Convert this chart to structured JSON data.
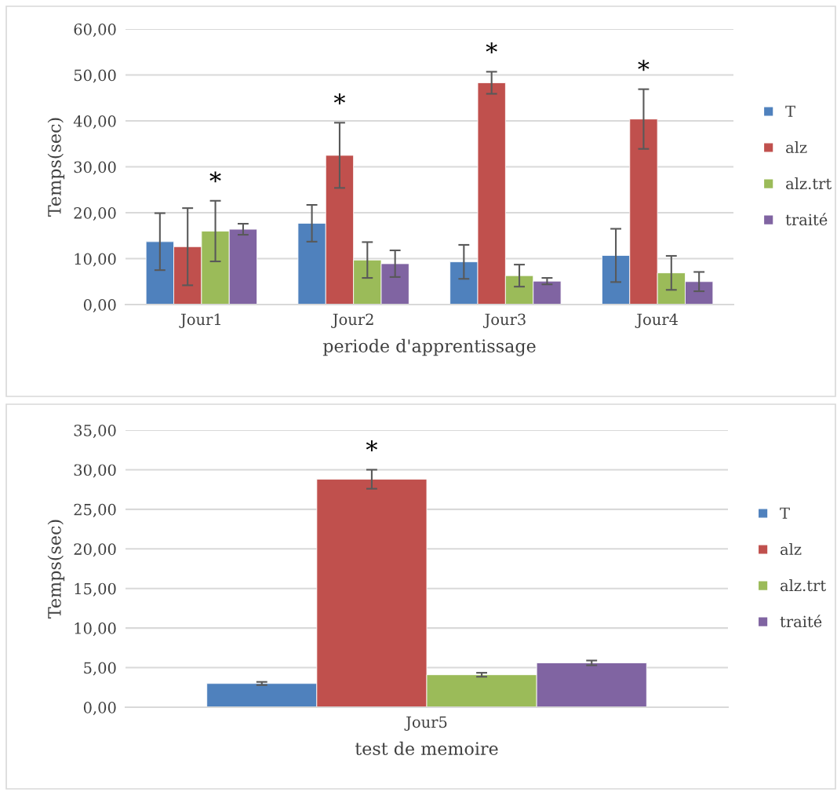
{
  "chart_data": [
    {
      "type": "bar",
      "xlabel": "periode d'apprentissage",
      "ylabel": "Temps(sec)",
      "categories": [
        "Jour1",
        "Jour2",
        "Jour3",
        "Jour4"
      ],
      "series": [
        {
          "name": "T",
          "color": "#4f81bd",
          "values": [
            13.7,
            17.7,
            9.3,
            10.7
          ],
          "errors": [
            6.2,
            4.0,
            3.7,
            5.8
          ]
        },
        {
          "name": "alz",
          "color": "#c0504d",
          "values": [
            12.6,
            32.5,
            48.3,
            40.4
          ],
          "errors": [
            8.4,
            7.1,
            2.4,
            6.5
          ]
        },
        {
          "name": "alz.trt",
          "color": "#9bbb59",
          "values": [
            16.0,
            9.7,
            6.3,
            6.9
          ],
          "errors": [
            6.6,
            3.9,
            2.4,
            3.7
          ]
        },
        {
          "name": "traité",
          "color": "#8064a2",
          "values": [
            16.4,
            8.9,
            5.1,
            5.0
          ],
          "errors": [
            1.2,
            2.9,
            0.7,
            2.1
          ]
        }
      ],
      "ylim": [
        0,
        60
      ],
      "yticks": [
        {
          "value": 0,
          "label": "0,00"
        },
        {
          "value": 10,
          "label": "10,00"
        },
        {
          "value": 20,
          "label": "20,00"
        },
        {
          "value": 30,
          "label": "30,00"
        },
        {
          "value": 40,
          "label": "40,00"
        },
        {
          "value": 50,
          "label": "50,00"
        },
        {
          "value": 60,
          "label": "60,00"
        }
      ],
      "grid": "y",
      "legend": "right",
      "annotations": [
        "*",
        "*",
        "*",
        "*"
      ]
    },
    {
      "type": "bar",
      "xlabel": "test de memoire",
      "ylabel": "Temps(sec)",
      "categories": [
        "Jour5"
      ],
      "series": [
        {
          "name": "T",
          "color": "#4f81bd",
          "values": [
            3.0
          ],
          "errors": [
            0.2
          ]
        },
        {
          "name": "alz",
          "color": "#c0504d",
          "values": [
            28.8
          ],
          "errors": [
            1.2
          ]
        },
        {
          "name": "alz.trt",
          "color": "#9bbb59",
          "values": [
            4.1
          ],
          "errors": [
            0.25
          ]
        },
        {
          "name": "traité",
          "color": "#8064a2",
          "values": [
            5.6
          ],
          "errors": [
            0.3
          ]
        }
      ],
      "ylim": [
        0,
        35
      ],
      "yticks": [
        {
          "value": 0,
          "label": "0,00"
        },
        {
          "value": 5,
          "label": "5,00"
        },
        {
          "value": 10,
          "label": "10,00"
        },
        {
          "value": 15,
          "label": "15,00"
        },
        {
          "value": 20,
          "label": "20,00"
        },
        {
          "value": 25,
          "label": "25,00"
        },
        {
          "value": 30,
          "label": "30,00"
        },
        {
          "value": 35,
          "label": "35,00"
        }
      ],
      "grid": "y",
      "legend": "right",
      "annotations": [
        "*"
      ]
    }
  ]
}
